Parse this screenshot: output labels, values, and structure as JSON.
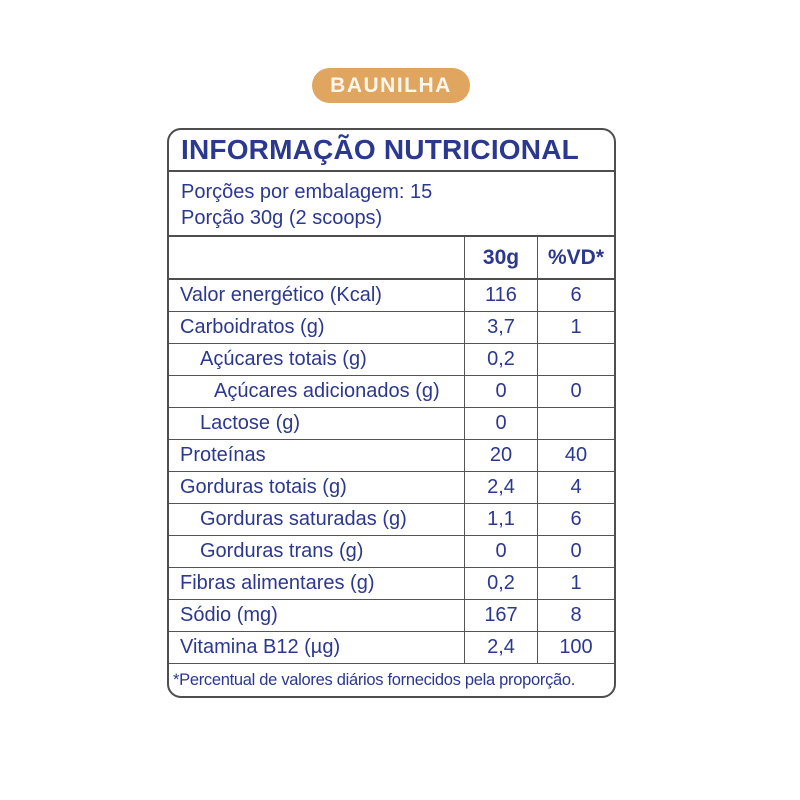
{
  "badge": {
    "label": "BAUNILHA",
    "bg_color": "#E0A55E",
    "text_color": "#FAF6EE"
  },
  "nutrition_table": {
    "title": "INFORMAÇÃO NUTRICIONAL",
    "servings_line1": "Porções por embalagem: 15",
    "servings_line2": "Porção 30g (2 scoops)",
    "columns": {
      "amount_header": "30g",
      "dv_header": "%VD*"
    },
    "rows": [
      {
        "label": "Valor energético (Kcal)",
        "indent": 0,
        "amount": "116",
        "dv": "6"
      },
      {
        "label": "Carboidratos (g)",
        "indent": 0,
        "amount": "3,7",
        "dv": "1"
      },
      {
        "label": "Açúcares totais (g)",
        "indent": 1,
        "amount": "0,2",
        "dv": ""
      },
      {
        "label": "Açúcares adicionados (g)",
        "indent": 2,
        "amount": "0",
        "dv": "0"
      },
      {
        "label": "Lactose (g)",
        "indent": 1,
        "amount": "0",
        "dv": ""
      },
      {
        "label": "Proteínas",
        "indent": 0,
        "amount": "20",
        "dv": "40"
      },
      {
        "label": "Gorduras totais (g)",
        "indent": 0,
        "amount": "2,4",
        "dv": "4"
      },
      {
        "label": "Gorduras saturadas (g)",
        "indent": 1,
        "amount": "1,1",
        "dv": "6"
      },
      {
        "label": "Gorduras trans (g)",
        "indent": 1,
        "amount": "0",
        "dv": "0"
      },
      {
        "label": "Fibras alimentares (g)",
        "indent": 0,
        "amount": "0,2",
        "dv": "1"
      },
      {
        "label": "Sódio (mg)",
        "indent": 0,
        "amount": "167",
        "dv": "8"
      },
      {
        "label": "Vitamina B12 (µg)",
        "indent": 0,
        "amount": "2,4",
        "dv": "100"
      }
    ],
    "footnote": "*Percentual de valores diários fornecidos pela proporção.",
    "text_color": "#2B3890",
    "border_color": "#4E4E4E"
  }
}
